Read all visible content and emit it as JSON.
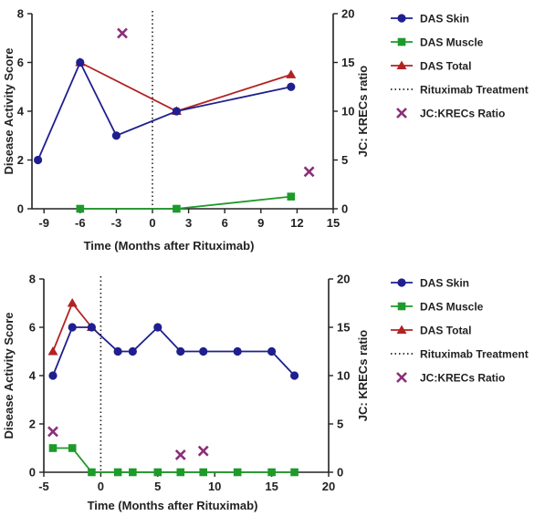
{
  "colors": {
    "skin": "#1f1f8f",
    "muscle": "#1e9a2a",
    "total": "#b32222",
    "jc": "#8b2f7a",
    "axis": "#222222"
  },
  "chart_data": [
    {
      "type": "line",
      "xlabel": "Time (Months after Rituximab)",
      "ylabel": "Disease Activity Score",
      "y2label": "JC: KRECs ratio",
      "xlim": [
        -10,
        15
      ],
      "ylim": [
        0,
        8
      ],
      "y2lim": [
        0,
        20
      ],
      "xticks": [
        -9,
        -6,
        -3,
        0,
        3,
        6,
        9,
        12,
        15
      ],
      "yticks": [
        0,
        2,
        4,
        6,
        8
      ],
      "y2ticks": [
        0,
        5,
        10,
        15,
        20
      ],
      "treatment_x": 0,
      "series": [
        {
          "name": "DAS Skin",
          "marker": "circle",
          "x": [
            -9.5,
            -6,
            -3,
            2,
            11.5
          ],
          "y": [
            2,
            6,
            3,
            4,
            5
          ]
        },
        {
          "name": "DAS Muscle",
          "marker": "square",
          "x": [
            -6,
            2,
            11.5
          ],
          "y": [
            0,
            0,
            0.5
          ]
        },
        {
          "name": "DAS Total",
          "marker": "triangle",
          "x": [
            -6,
            2,
            11.5
          ],
          "y": [
            6,
            4,
            5.5
          ]
        },
        {
          "name": "Rituximab Treatment",
          "marker": "dotted"
        },
        {
          "name": "JC:KRECs Ratio",
          "marker": "x",
          "axis": "right",
          "x": [
            -2.5,
            13
          ],
          "y": [
            18,
            3.8
          ]
        }
      ]
    },
    {
      "type": "line",
      "xlabel": "Time (Months after Rituximab)",
      "ylabel": "Disease Activity Score",
      "y2label": "JC: KRECs ratio",
      "xlim": [
        -5,
        20
      ],
      "ylim": [
        0,
        8
      ],
      "y2lim": [
        0,
        20
      ],
      "xticks": [
        -5,
        0,
        5,
        10,
        15,
        20
      ],
      "yticks": [
        0,
        2,
        4,
        6,
        8
      ],
      "y2ticks": [
        0,
        5,
        10,
        15,
        20
      ],
      "treatment_x": 0,
      "series": [
        {
          "name": "DAS Skin",
          "marker": "circle",
          "x": [
            -4.2,
            -2.5,
            -0.8,
            1.5,
            2.8,
            5,
            7,
            9,
            12,
            15,
            17
          ],
          "y": [
            4,
            6,
            6,
            5,
            5,
            6,
            5,
            5,
            5,
            5,
            4
          ]
        },
        {
          "name": "DAS Muscle",
          "marker": "square",
          "x": [
            -4.2,
            -2.5,
            -0.8,
            1.5,
            2.8,
            5,
            7,
            9,
            12,
            15,
            17
          ],
          "y": [
            1,
            1,
            0,
            0,
            0,
            0,
            0,
            0,
            0,
            0,
            0
          ]
        },
        {
          "name": "DAS Total",
          "marker": "triangle",
          "x": [
            -4.2,
            -2.5,
            -0.8
          ],
          "y": [
            5,
            7,
            6
          ]
        },
        {
          "name": "Rituximab Treatment",
          "marker": "dotted"
        },
        {
          "name": "JC:KRECs Ratio",
          "marker": "x",
          "axis": "right",
          "x": [
            -4.2,
            7,
            9
          ],
          "y": [
            4.2,
            1.8,
            2.2
          ]
        }
      ]
    }
  ]
}
